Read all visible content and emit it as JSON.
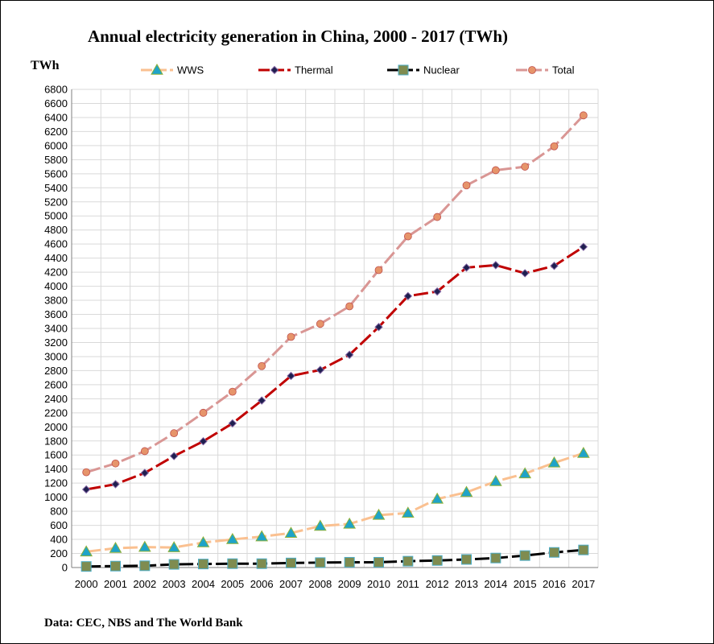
{
  "chart_data": {
    "type": "line",
    "title": "Annual electricity generation in China, 2000 - 2017 (TWh)",
    "ylabel": "TWh",
    "xlabel": "",
    "source": "Data: CEC, NBS and The World Bank",
    "x": [
      "2000",
      "2001",
      "2002",
      "2003",
      "2004",
      "2005",
      "2006",
      "2007",
      "2008",
      "2009",
      "2010",
      "2011",
      "2012",
      "2013",
      "2014",
      "2015",
      "2016",
      "2017"
    ],
    "ylim": [
      0,
      6800
    ],
    "ytick_step": 200,
    "grid": true,
    "legend_position": "top",
    "series": [
      {
        "name": "WWS",
        "color": "#FAC090",
        "marker": "triangle",
        "marker_color": "#1FA3C8",
        "values": [
          225,
          275,
          290,
          285,
          355,
          400,
          440,
          490,
          590,
          620,
          745,
          775,
          975,
          1070,
          1225,
          1335,
          1490,
          1625
        ]
      },
      {
        "name": "Thermal",
        "color": "#C00000",
        "marker": "diamond",
        "marker_color": "#1F1F4F",
        "values": [
          1110,
          1185,
          1345,
          1585,
          1795,
          2050,
          2375,
          2725,
          2810,
          3025,
          3420,
          3860,
          3925,
          4265,
          4300,
          4185,
          4290,
          4560
        ]
      },
      {
        "name": "Nuclear",
        "color": "#000000",
        "marker": "square",
        "marker_color": "#7F8C50",
        "values": [
          15,
          20,
          25,
          45,
          50,
          55,
          55,
          65,
          70,
          75,
          75,
          90,
          100,
          115,
          135,
          170,
          215,
          250
        ]
      },
      {
        "name": "Total",
        "color": "#D99694",
        "marker": "circle",
        "marker_color": "#E6946A",
        "values": [
          1355,
          1480,
          1655,
          1910,
          2200,
          2500,
          2865,
          3280,
          3465,
          3715,
          4230,
          4710,
          4985,
          5435,
          5650,
          5700,
          5990,
          6430
        ]
      }
    ]
  }
}
